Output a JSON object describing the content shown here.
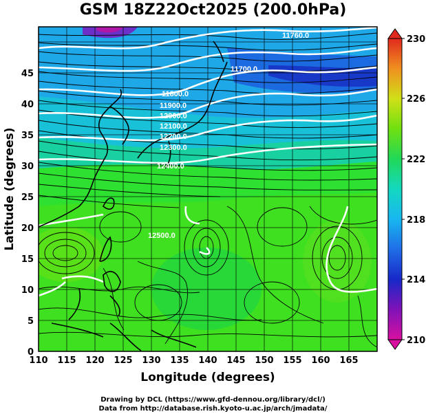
{
  "title": "GSM 18Z22Oct2025 (200.0hPa)",
  "axes": {
    "x_label": "Longitude (degrees)",
    "y_label": "Latitude  (degrees)",
    "x_ticks": [
      "110",
      "115",
      "120",
      "125",
      "130",
      "135",
      "140",
      "145",
      "150",
      "155",
      "160",
      "165"
    ],
    "y_ticks": [
      "0",
      "5",
      "10",
      "15",
      "20",
      "25",
      "30",
      "35",
      "40",
      "45"
    ],
    "x_range": [
      110,
      170
    ],
    "y_range": [
      0,
      50
    ]
  },
  "colorbar": {
    "min": 210,
    "max": 230,
    "labels": [
      "230",
      "226",
      "222",
      "218",
      "214",
      "210"
    ],
    "colors": [
      "#d8109a",
      "#7a0fb0",
      "#1a2ac8",
      "#1e6ee8",
      "#19b8f0",
      "#15d8c0",
      "#22d85a",
      "#6ee010",
      "#c8e018",
      "#f0c020",
      "#f07a20",
      "#e03020"
    ]
  },
  "contour_labels": [
    "11760.0",
    "11700.0",
    "11800.0",
    "11900.0",
    "12000.0",
    "12100.0",
    "12200.0",
    "12300.0",
    "12400.0",
    "12500.0"
  ],
  "credits": {
    "line1": "Drawing by DCL (https://www.gfd-dennou.org/library/dcl/)",
    "line2": "Data from http://database.rish.kyoto-u.ac.jp/arch/jmadata/"
  }
}
